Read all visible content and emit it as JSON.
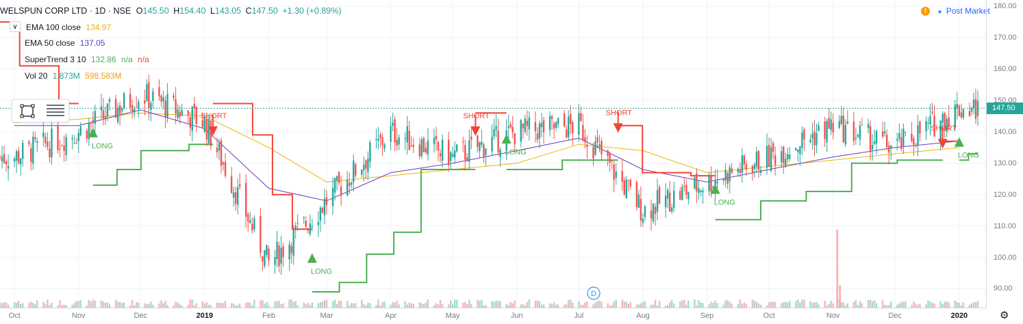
{
  "header": {
    "symbol": "WELSPUN CORP LTD · 1D · NSE",
    "open_label": "O",
    "open": "145.50",
    "high_label": "H",
    "high": "154.40",
    "low_label": "L",
    "low": "143.05",
    "close_label": "C",
    "close": "147.50",
    "change": "+1.30 (+0.89%)"
  },
  "indicators": [
    {
      "name": "EMA 100 close",
      "values": [
        "134.97"
      ],
      "colors": [
        "#f0b400"
      ]
    },
    {
      "name": "EMA 50 close",
      "values": [
        "137.05"
      ],
      "colors": [
        "#673ab7"
      ]
    },
    {
      "name": "SuperTrend 3 10",
      "values": [
        "132.86",
        "n/a",
        "n/a"
      ],
      "colors": [
        "#4caf50",
        "#4caf50",
        "#f44336"
      ]
    },
    {
      "name": "Vol 20",
      "values": [
        "1.873M",
        "598.583M"
      ],
      "colors": [
        "#26a69a",
        "#ff9800"
      ]
    }
  ],
  "market_status": {
    "icon": "warning-icon",
    "warn_glyph": "!",
    "label": "Post Market"
  },
  "price_axis": {
    "ticks": [
      "180.00",
      "170.00",
      "160.00",
      "150.00",
      "140.00",
      "130.00",
      "120.00",
      "110.00",
      "100.00",
      "90.00"
    ],
    "last_price": "147.50"
  },
  "time_axis": {
    "ticks": [
      "Oct",
      "Nov",
      "Dec",
      "2019",
      "Feb",
      "Mar",
      "Apr",
      "May",
      "Jun",
      "Jul",
      "Aug",
      "Sep",
      "Oct",
      "Nov",
      "Dec",
      "2020"
    ]
  },
  "signal_labels": {
    "long": "LONG",
    "short": "SHORT"
  },
  "event_marker": "D",
  "colors": {
    "up": "#26a69a",
    "down": "#ef5350",
    "ema100": "#f0b400",
    "ema50": "#673ab7",
    "st_up": "#4caf50",
    "st_down": "#f44336"
  },
  "chart_data": {
    "type": "candlestick",
    "ylim": [
      84,
      182
    ],
    "x_range": [
      "2018-09-24",
      "2020-01-10"
    ],
    "close_series_monthly": {
      "dates": [
        "2018-10",
        "2018-11",
        "2018-12",
        "2019-01",
        "2019-02",
        "2019-03",
        "2019-04",
        "2019-05",
        "2019-06",
        "2019-07",
        "2019-08",
        "2019-09",
        "2019-10",
        "2019-11",
        "2019-12",
        "2020-01"
      ],
      "values": [
        132,
        140,
        152,
        143,
        98,
        118,
        140,
        132,
        140,
        142,
        115,
        124,
        132,
        142,
        135,
        147.5
      ]
    },
    "signals": [
      {
        "type": "LONG",
        "date": "2018-11-08",
        "price": 140
      },
      {
        "type": "SHORT",
        "date": "2019-01-05",
        "price": 140
      },
      {
        "type": "LONG",
        "date": "2019-02-22",
        "price": 100
      },
      {
        "type": "SHORT",
        "date": "2019-05-12",
        "price": 140
      },
      {
        "type": "LONG",
        "date": "2019-05-27",
        "price": 138
      },
      {
        "type": "SHORT",
        "date": "2019-07-20",
        "price": 141
      },
      {
        "type": "LONG",
        "date": "2019-09-05",
        "price": 122
      },
      {
        "type": "SHORT",
        "date": "2019-12-24",
        "price": 136
      },
      {
        "type": "LONG",
        "date": "2020-01-01",
        "price": 137
      }
    ],
    "supertrend_down_segments": [
      {
        "from": "2018-09-24",
        "to": "2018-11-01",
        "values": [
          175,
          161,
          161,
          149
        ]
      },
      {
        "from": "2019-01-05",
        "to": "2019-02-22",
        "values": [
          149,
          149,
          139,
          120,
          109
        ]
      },
      {
        "from": "2019-05-12",
        "to": "2019-05-27",
        "values": [
          146,
          146
        ]
      },
      {
        "from": "2019-07-20",
        "to": "2019-09-05",
        "values": [
          142,
          127,
          127,
          126
        ]
      },
      {
        "from": "2019-12-24",
        "to": "2020-01-01",
        "values": [
          137,
          137
        ]
      }
    ],
    "supertrend_up_segments": [
      {
        "from": "2018-11-08",
        "to": "2019-01-05",
        "values": [
          123,
          128,
          134,
          134,
          136
        ]
      },
      {
        "from": "2019-02-22",
        "to": "2019-05-12",
        "values": [
          89,
          92,
          101,
          108,
          128,
          128
        ]
      },
      {
        "from": "2019-05-27",
        "to": "2019-07-20",
        "values": [
          128,
          128,
          131,
          131
        ]
      },
      {
        "from": "2019-09-05",
        "to": "2019-12-24",
        "values": [
          112,
          118,
          121,
          130,
          131
        ]
      },
      {
        "from": "2020-01-01",
        "to": "2020-01-10",
        "values": [
          131,
          133
        ]
      }
    ],
    "ema100_monthly": [
      143,
      144,
      146,
      145,
      135,
      124,
      126,
      128,
      130,
      136,
      134,
      127,
      129,
      131,
      133,
      134.97
    ],
    "ema50_monthly": [
      142,
      142,
      147,
      141,
      122,
      118,
      127,
      130,
      134,
      138,
      128,
      124,
      128,
      132,
      135,
      137.05
    ],
    "volume_spike": {
      "date": "2019-11-03",
      "label": "tall volume bar"
    }
  }
}
